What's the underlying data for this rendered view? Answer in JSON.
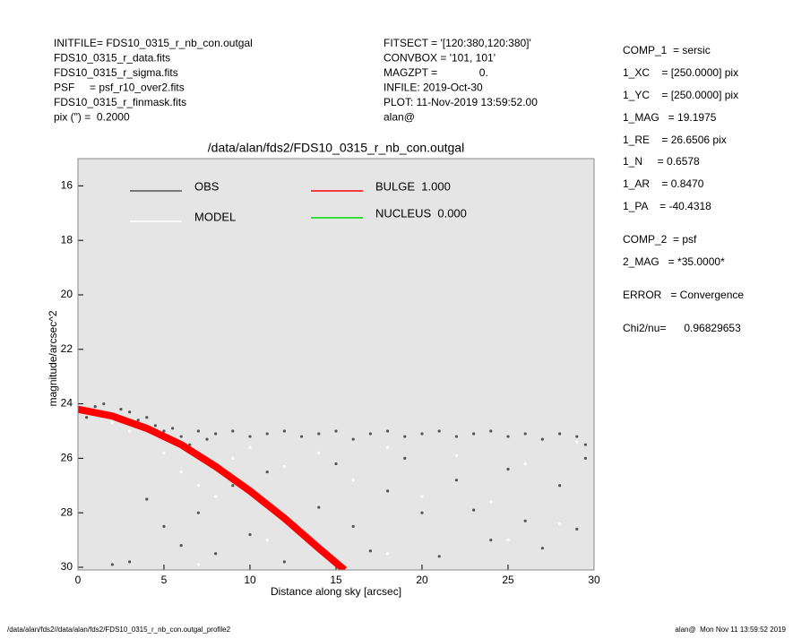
{
  "header_left": [
    "INITFILE= FDS10_0315_r_nb_con.outgal",
    "FDS10_0315_r_data.fits",
    "FDS10_0315_r_sigma.fits",
    "PSF     = psf_r10_over2.fits",
    "FDS10_0315_r_finmask.fits",
    "pix (\") =  0.2000"
  ],
  "header_middle": [
    "FITSECT = '[120:380,120:380]'",
    "CONVBOX = '101, 101'",
    "MAGZPT =              0.",
    "INFILE: 2019-Oct-30",
    "PLOT: 11-Nov-2019 13:59:52.00",
    "alan@"
  ],
  "params": [
    "COMP_1  = sersic",
    "1_XC    = [250.0000] pix",
    "1_YC    = [250.0000] pix",
    "1_MAG   = 19.1975",
    "1_RE    = 26.6506 pix",
    "1_N     = 0.6578",
    "1_AR    = 0.8470",
    "1_PA    = -40.4318",
    "COMP_2  = psf",
    "2_MAG   = *35.0000*",
    "ERROR   = Convergence",
    "Chi2/nu=      0.96829653"
  ],
  "footer_left": "/data/alan/fds2//data/alan/fds2/FDS10_0315_r_nb_con.outgal_profile2",
  "footer_right": "alan@  Mon Nov 11 13:59:52 2019",
  "chart_data": {
    "type": "scatter",
    "title": "/data/alan/fds2/FDS10_0315_r_nb_con.outgal",
    "x_label": "Distance along sky [arcsec]",
    "y_label": "magnitude/arcsec^2",
    "xlim": [
      0,
      30
    ],
    "ylim": [
      30.1,
      15.0
    ],
    "xticks": [
      0,
      5,
      10,
      15,
      20,
      25,
      30
    ],
    "yticks": [
      16,
      18,
      20,
      22,
      24,
      26,
      28,
      30
    ],
    "series": [
      {
        "name": "OBS",
        "color": "#555555",
        "style": "points",
        "x": [
          0.2,
          0.5,
          1,
          1.5,
          2,
          2.5,
          3,
          3.5,
          4,
          4.5,
          5,
          5.5,
          6,
          6.5,
          7,
          7.5,
          8,
          9,
          10,
          11,
          12,
          13,
          14,
          15,
          16,
          17,
          18,
          19,
          20,
          21,
          22,
          23,
          24,
          25,
          26,
          27,
          28,
          29,
          29.5,
          4,
          5,
          6,
          7,
          8,
          9,
          10,
          11,
          12,
          14,
          15,
          16,
          17,
          18,
          19,
          20,
          21,
          22,
          23,
          24,
          25,
          26,
          27,
          28,
          29,
          29.5,
          3,
          2
        ],
        "values": [
          24.3,
          24.5,
          24.1,
          24.0,
          24.4,
          24.2,
          24.3,
          24.6,
          24.5,
          24.8,
          25.0,
          24.9,
          25.2,
          25.5,
          25.0,
          25.3,
          25.1,
          25.0,
          25.2,
          25.1,
          25.0,
          25.2,
          25.1,
          25.0,
          25.3,
          25.1,
          25.0,
          25.2,
          25.1,
          25.0,
          25.2,
          25.1,
          25.0,
          25.2,
          25.1,
          25.3,
          25.1,
          25.2,
          25.5,
          27.5,
          28.5,
          29.2,
          28.0,
          29.5,
          27.0,
          28.8,
          26.5,
          29.8,
          27.8,
          26.2,
          28.5,
          29.4,
          27.2,
          26.0,
          28.0,
          29.6,
          26.8,
          27.9,
          29.0,
          26.4,
          28.3,
          29.3,
          27.0,
          28.6,
          26.0,
          29.8,
          29.9
        ]
      },
      {
        "name": "MODEL",
        "color": "#ffffff",
        "style": "points",
        "x": [
          1,
          2,
          3,
          5,
          6,
          7,
          8,
          9,
          10,
          12,
          14,
          16,
          18,
          20,
          22,
          24,
          26,
          28,
          29,
          7,
          11,
          18,
          25
        ],
        "values": [
          24.4,
          24.7,
          25.0,
          25.8,
          26.5,
          27.0,
          27.4,
          26.0,
          25.6,
          26.3,
          25.8,
          26.8,
          25.6,
          27.4,
          25.9,
          27.6,
          26.2,
          28.4,
          25.4,
          29.9,
          29.0,
          29.5,
          29.0
        ]
      },
      {
        "name": "BULGE  1.000",
        "color": "#ff0000",
        "style": "line",
        "x": [
          0,
          2,
          4,
          6,
          8,
          10,
          12,
          14,
          15.5
        ],
        "values": [
          24.2,
          24.45,
          24.9,
          25.5,
          26.3,
          27.2,
          28.2,
          29.3,
          30.1
        ]
      },
      {
        "name": "NUCLEUS  0.000",
        "color": "#00dd00",
        "style": "line",
        "x": [],
        "values": []
      }
    ]
  }
}
